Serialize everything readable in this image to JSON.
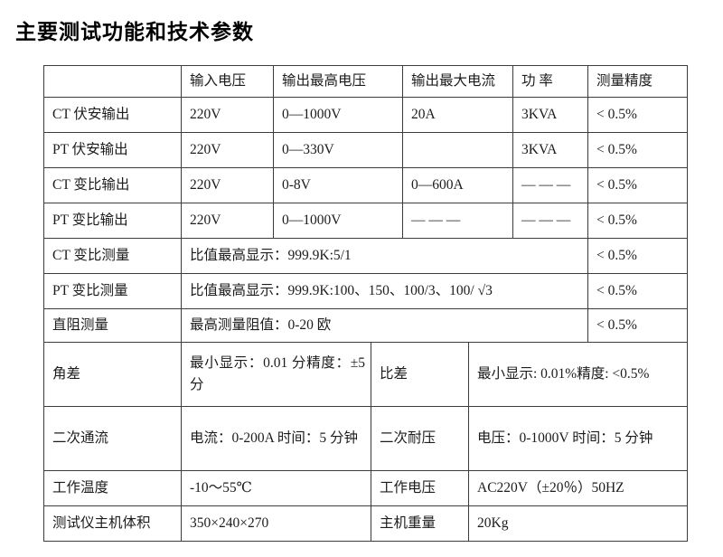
{
  "title": "主要测试功能和技术参数",
  "colors": {
    "background": "#ffffff",
    "table_border": "#3c3c3c",
    "text": "#1c1c1c"
  },
  "table": {
    "header": [
      "",
      "输入电压",
      "输出最高电压",
      "输出最大电流",
      "功 率",
      "测量精度"
    ],
    "rows6": [
      {
        "c": [
          "CT 伏安输出",
          "220V",
          "0—1000V",
          "20A",
          "3KVA",
          "< 0.5%"
        ]
      },
      {
        "c": [
          "PT 伏安输出",
          "220V",
          "0—330V",
          "",
          "3KVA",
          "< 0.5%"
        ]
      },
      {
        "c": [
          "CT 变比输出",
          "220V",
          "0-8V",
          "0—600A",
          "— — —",
          "< 0.5%"
        ]
      },
      {
        "c": [
          "PT 变比输出",
          "220V",
          "0—1000V",
          "— — —",
          "— — —",
          "< 0.5%"
        ]
      }
    ],
    "rows_merged": [
      {
        "label": "CT 变比测量",
        "value": "比值最高显示：999.9K:5/1",
        "accuracy": "< 0.5%"
      },
      {
        "label": "PT 变比测量",
        "value": "比值最高显示：999.9K:100、150、100/3、100/ √3",
        "accuracy": "< 0.5%"
      },
      {
        "label": "直阻测量",
        "value": "最高测量阻值：0-20 欧",
        "accuracy": "< 0.5%"
      }
    ],
    "rows4": [
      {
        "c": [
          "角差",
          "最小显示：0.01 分精度：±5 分",
          "比差",
          "最小显示: 0.01%精度: <0.5%"
        ]
      },
      {
        "c": [
          "二次通流",
          "电流：0-200A 时间：5 分钟",
          "二次耐压",
          "电压：0-1000V 时间：5 分钟"
        ]
      },
      {
        "c": [
          "工作温度",
          "-10～55℃",
          "工作电压",
          "AC220V（±20％）50HZ"
        ]
      },
      {
        "c": [
          "测试仪主机体积",
          "350×240×270",
          "主机重量",
          "20Kg"
        ]
      }
    ]
  }
}
